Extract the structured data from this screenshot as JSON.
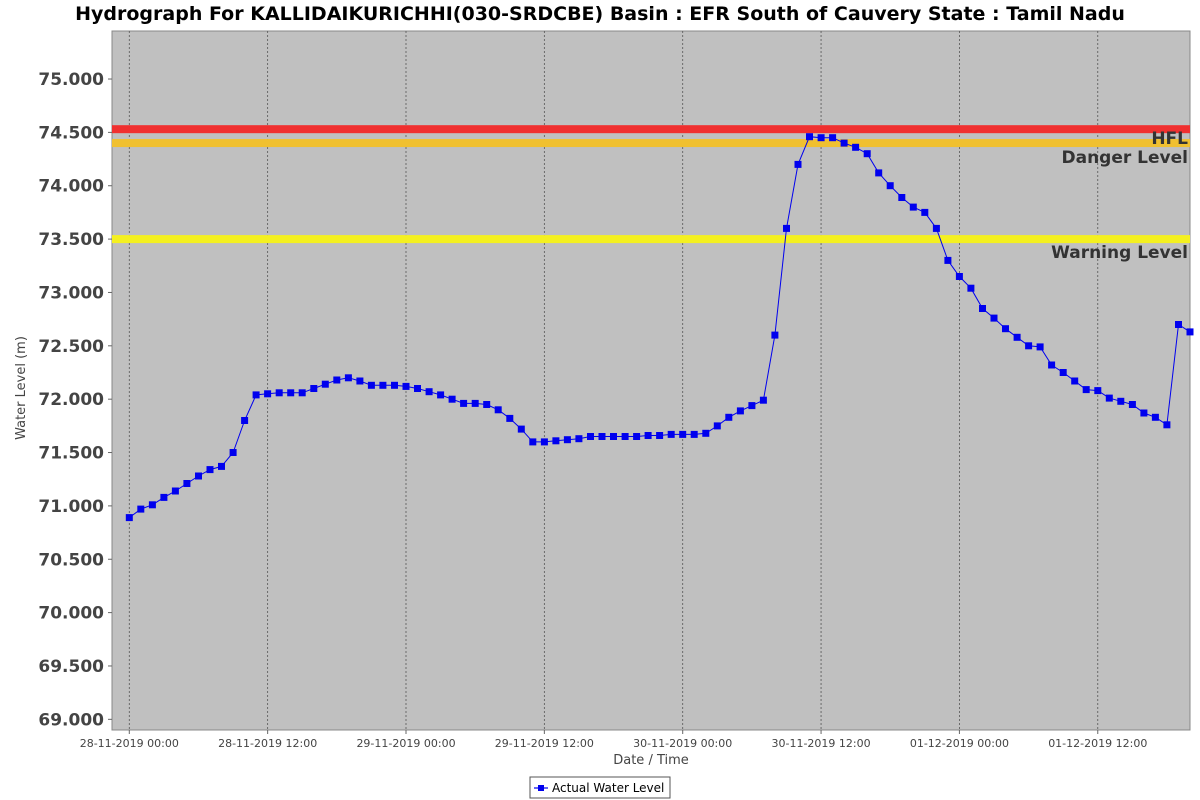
{
  "chart_data": {
    "type": "line",
    "title": "Hydrograph For KALLIDAIKURICHHI(030-SRDCBE) Basin : EFR South of Cauvery State : Tamil Nadu",
    "xlabel": "Date / Time",
    "ylabel": "Water Level (m)",
    "ylim": [
      68.9,
      75.45
    ],
    "xlim": [
      "2019-11-27T22:30",
      "2019-12-01T20:00"
    ],
    "y_ticks": [
      "69.000",
      "69.500",
      "70.000",
      "70.500",
      "71.000",
      "71.500",
      "72.000",
      "72.500",
      "73.000",
      "73.500",
      "74.000",
      "74.500",
      "75.000"
    ],
    "x_ticks": [
      {
        "t": "2019-11-28T00:00",
        "label": "28-11-2019 00:00"
      },
      {
        "t": "2019-11-28T12:00",
        "label": "28-11-2019 12:00"
      },
      {
        "t": "2019-11-29T00:00",
        "label": "29-11-2019 00:00"
      },
      {
        "t": "2019-11-29T12:00",
        "label": "29-11-2019 12:00"
      },
      {
        "t": "2019-11-30T00:00",
        "label": "30-11-2019 00:00"
      },
      {
        "t": "2019-11-30T12:00",
        "label": "30-11-2019 12:00"
      },
      {
        "t": "2019-12-01T00:00",
        "label": "01-12-2019 00:00"
      },
      {
        "t": "2019-12-01T12:00",
        "label": "01-12-2019 12:00"
      }
    ],
    "grid": true,
    "legend": "bottom-center",
    "thresholds": [
      {
        "name": "HFL",
        "value": 74.53,
        "color": "#f03030"
      },
      {
        "name": "Danger Level",
        "value": 74.4,
        "color": "#f0c030"
      },
      {
        "name": "Warning Level",
        "value": 73.5,
        "color": "#f4f020"
      }
    ],
    "series": [
      {
        "name": "Actual Water Level",
        "color": "#0000ee",
        "points": [
          {
            "t": "2019-11-28T00:00",
            "y": 70.89
          },
          {
            "t": "2019-11-28T01:00",
            "y": 70.97
          },
          {
            "t": "2019-11-28T02:00",
            "y": 71.01
          },
          {
            "t": "2019-11-28T03:00",
            "y": 71.08
          },
          {
            "t": "2019-11-28T04:00",
            "y": 71.14
          },
          {
            "t": "2019-11-28T05:00",
            "y": 71.21
          },
          {
            "t": "2019-11-28T06:00",
            "y": 71.28
          },
          {
            "t": "2019-11-28T07:00",
            "y": 71.34
          },
          {
            "t": "2019-11-28T08:00",
            "y": 71.37
          },
          {
            "t": "2019-11-28T09:00",
            "y": 71.5
          },
          {
            "t": "2019-11-28T10:00",
            "y": 71.8
          },
          {
            "t": "2019-11-28T11:00",
            "y": 72.04
          },
          {
            "t": "2019-11-28T12:00",
            "y": 72.05
          },
          {
            "t": "2019-11-28T13:00",
            "y": 72.06
          },
          {
            "t": "2019-11-28T14:00",
            "y": 72.06
          },
          {
            "t": "2019-11-28T15:00",
            "y": 72.06
          },
          {
            "t": "2019-11-28T16:00",
            "y": 72.1
          },
          {
            "t": "2019-11-28T17:00",
            "y": 72.14
          },
          {
            "t": "2019-11-28T18:00",
            "y": 72.18
          },
          {
            "t": "2019-11-28T19:00",
            "y": 72.2
          },
          {
            "t": "2019-11-28T20:00",
            "y": 72.17
          },
          {
            "t": "2019-11-28T21:00",
            "y": 72.13
          },
          {
            "t": "2019-11-28T22:00",
            "y": 72.13
          },
          {
            "t": "2019-11-28T23:00",
            "y": 72.13
          },
          {
            "t": "2019-11-29T00:00",
            "y": 72.12
          },
          {
            "t": "2019-11-29T01:00",
            "y": 72.1
          },
          {
            "t": "2019-11-29T02:00",
            "y": 72.07
          },
          {
            "t": "2019-11-29T03:00",
            "y": 72.04
          },
          {
            "t": "2019-11-29T04:00",
            "y": 72.0
          },
          {
            "t": "2019-11-29T05:00",
            "y": 71.96
          },
          {
            "t": "2019-11-29T06:00",
            "y": 71.96
          },
          {
            "t": "2019-11-29T07:00",
            "y": 71.95
          },
          {
            "t": "2019-11-29T08:00",
            "y": 71.9
          },
          {
            "t": "2019-11-29T09:00",
            "y": 71.82
          },
          {
            "t": "2019-11-29T10:00",
            "y": 71.72
          },
          {
            "t": "2019-11-29T11:00",
            "y": 71.6
          },
          {
            "t": "2019-11-29T12:00",
            "y": 71.6
          },
          {
            "t": "2019-11-29T13:00",
            "y": 71.61
          },
          {
            "t": "2019-11-29T14:00",
            "y": 71.62
          },
          {
            "t": "2019-11-29T15:00",
            "y": 71.63
          },
          {
            "t": "2019-11-29T16:00",
            "y": 71.65
          },
          {
            "t": "2019-11-29T17:00",
            "y": 71.65
          },
          {
            "t": "2019-11-29T18:00",
            "y": 71.65
          },
          {
            "t": "2019-11-29T19:00",
            "y": 71.65
          },
          {
            "t": "2019-11-29T20:00",
            "y": 71.65
          },
          {
            "t": "2019-11-29T21:00",
            "y": 71.66
          },
          {
            "t": "2019-11-29T22:00",
            "y": 71.66
          },
          {
            "t": "2019-11-29T23:00",
            "y": 71.67
          },
          {
            "t": "2019-11-30T00:00",
            "y": 71.67
          },
          {
            "t": "2019-11-30T01:00",
            "y": 71.67
          },
          {
            "t": "2019-11-30T02:00",
            "y": 71.68
          },
          {
            "t": "2019-11-30T03:00",
            "y": 71.75
          },
          {
            "t": "2019-11-30T04:00",
            "y": 71.83
          },
          {
            "t": "2019-11-30T05:00",
            "y": 71.89
          },
          {
            "t": "2019-11-30T06:00",
            "y": 71.94
          },
          {
            "t": "2019-11-30T07:00",
            "y": 71.99
          },
          {
            "t": "2019-11-30T08:00",
            "y": 72.6
          },
          {
            "t": "2019-11-30T09:00",
            "y": 73.6
          },
          {
            "t": "2019-11-30T10:00",
            "y": 74.2
          },
          {
            "t": "2019-11-30T11:00",
            "y": 74.46
          },
          {
            "t": "2019-11-30T12:00",
            "y": 74.45
          },
          {
            "t": "2019-11-30T13:00",
            "y": 74.45
          },
          {
            "t": "2019-11-30T14:00",
            "y": 74.4
          },
          {
            "t": "2019-11-30T15:00",
            "y": 74.36
          },
          {
            "t": "2019-11-30T16:00",
            "y": 74.3
          },
          {
            "t": "2019-11-30T17:00",
            "y": 74.12
          },
          {
            "t": "2019-11-30T18:00",
            "y": 74.0
          },
          {
            "t": "2019-11-30T19:00",
            "y": 73.89
          },
          {
            "t": "2019-11-30T20:00",
            "y": 73.8
          },
          {
            "t": "2019-11-30T21:00",
            "y": 73.75
          },
          {
            "t": "2019-11-30T22:00",
            "y": 73.6
          },
          {
            "t": "2019-11-30T23:00",
            "y": 73.3
          },
          {
            "t": "2019-12-01T00:00",
            "y": 73.15
          },
          {
            "t": "2019-12-01T01:00",
            "y": 73.04
          },
          {
            "t": "2019-12-01T02:00",
            "y": 72.85
          },
          {
            "t": "2019-12-01T03:00",
            "y": 72.76
          },
          {
            "t": "2019-12-01T04:00",
            "y": 72.66
          },
          {
            "t": "2019-12-01T05:00",
            "y": 72.58
          },
          {
            "t": "2019-12-01T06:00",
            "y": 72.5
          },
          {
            "t": "2019-12-01T07:00",
            "y": 72.49
          },
          {
            "t": "2019-12-01T08:00",
            "y": 72.32
          },
          {
            "t": "2019-12-01T09:00",
            "y": 72.25
          },
          {
            "t": "2019-12-01T10:00",
            "y": 72.17
          },
          {
            "t": "2019-12-01T11:00",
            "y": 72.09
          },
          {
            "t": "2019-12-01T12:00",
            "y": 72.08
          },
          {
            "t": "2019-12-01T13:00",
            "y": 72.01
          },
          {
            "t": "2019-12-01T14:00",
            "y": 71.98
          },
          {
            "t": "2019-12-01T15:00",
            "y": 71.95
          },
          {
            "t": "2019-12-01T16:00",
            "y": 71.87
          },
          {
            "t": "2019-12-01T17:00",
            "y": 71.83
          },
          {
            "t": "2019-12-01T18:00",
            "y": 71.76
          },
          {
            "t": "2019-12-01T19:00",
            "y": 72.7
          },
          {
            "t": "2019-12-01T20:00",
            "y": 72.63
          }
        ]
      }
    ]
  }
}
